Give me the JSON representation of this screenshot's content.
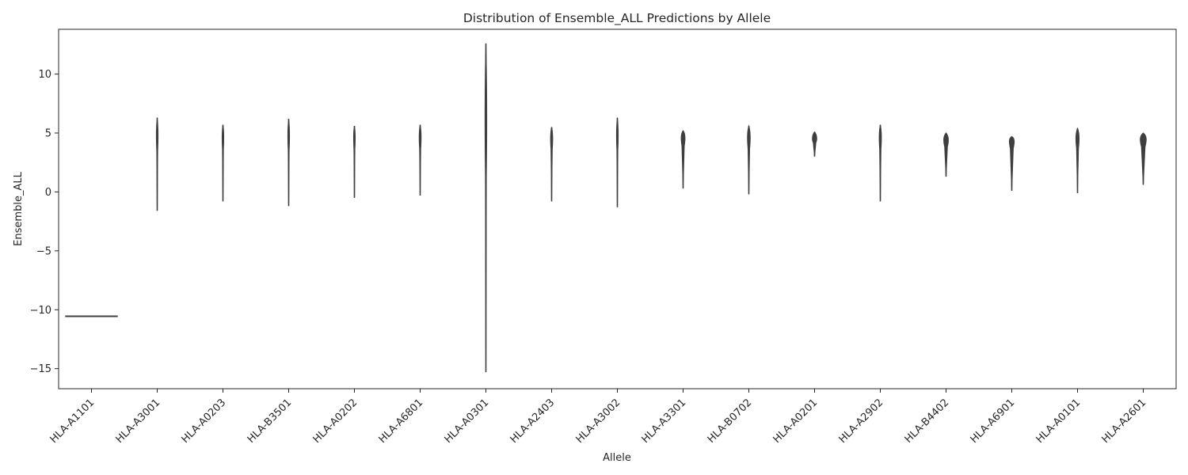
{
  "chart_data": {
    "type": "violin",
    "title": "Distribution of Ensemble_ALL Predictions by Allele",
    "xlabel": "Allele",
    "ylabel": "Ensemble_ALL",
    "ylim": [
      -16.7,
      13.8
    ],
    "yticks": [
      -15,
      -10,
      -5,
      0,
      5,
      10
    ],
    "ytick_labels": [
      "−15",
      "−10",
      "−5",
      "0",
      "5",
      "10"
    ],
    "grid": false,
    "color": "#3f3f3f",
    "categories": [
      "HLA-A1101",
      "HLA-A3001",
      "HLA-A0203",
      "HLA-B3501",
      "HLA-A0202",
      "HLA-A6801",
      "HLA-A0301",
      "HLA-A2403",
      "HLA-A3002",
      "HLA-A3301",
      "HLA-B0702",
      "HLA-A0201",
      "HLA-A2902",
      "HLA-B4402",
      "HLA-A6901",
      "HLA-A0101",
      "HLA-A2601"
    ],
    "series": [
      {
        "category": "HLA-A1101",
        "min": -10.6,
        "max": -10.5,
        "mode": -10.55,
        "width": 0.8
      },
      {
        "category": "HLA-A3001",
        "min": -1.6,
        "max": 6.3,
        "mode": 4.4,
        "width": 0.03
      },
      {
        "category": "HLA-A0203",
        "min": -0.8,
        "max": 5.7,
        "mode": 4.4,
        "width": 0.03
      },
      {
        "category": "HLA-B3501",
        "min": -1.2,
        "max": 6.2,
        "mode": 4.4,
        "width": 0.03
      },
      {
        "category": "HLA-A0202",
        "min": -0.5,
        "max": 5.6,
        "mode": 4.4,
        "width": 0.03
      },
      {
        "category": "HLA-A6801",
        "min": -0.3,
        "max": 5.7,
        "mode": 4.4,
        "width": 0.035
      },
      {
        "category": "HLA-A0301",
        "min": -15.3,
        "max": 12.6,
        "mode": 4.4,
        "width": 0.025
      },
      {
        "category": "HLA-A2403",
        "min": -0.8,
        "max": 5.5,
        "mode": 4.4,
        "width": 0.04
      },
      {
        "category": "HLA-A3002",
        "min": -1.3,
        "max": 6.3,
        "mode": 4.4,
        "width": 0.03
      },
      {
        "category": "HLA-A3301",
        "min": 0.3,
        "max": 5.2,
        "mode": 4.5,
        "width": 0.07
      },
      {
        "category": "HLA-B0702",
        "min": -0.2,
        "max": 5.6,
        "mode": 4.4,
        "width": 0.05
      },
      {
        "category": "HLA-A0201",
        "min": 3.0,
        "max": 5.1,
        "mode": 4.4,
        "width": 0.08
      },
      {
        "category": "HLA-A2902",
        "min": -0.8,
        "max": 5.7,
        "mode": 4.4,
        "width": 0.04
      },
      {
        "category": "HLA-B4402",
        "min": 1.3,
        "max": 5.0,
        "mode": 4.3,
        "width": 0.085
      },
      {
        "category": "HLA-A6901",
        "min": 0.1,
        "max": 4.7,
        "mode": 4.3,
        "width": 0.09
      },
      {
        "category": "HLA-A0101",
        "min": -0.1,
        "max": 5.4,
        "mode": 4.4,
        "width": 0.06
      },
      {
        "category": "HLA-A2601",
        "min": 0.6,
        "max": 5.0,
        "mode": 4.4,
        "width": 0.11
      }
    ]
  }
}
